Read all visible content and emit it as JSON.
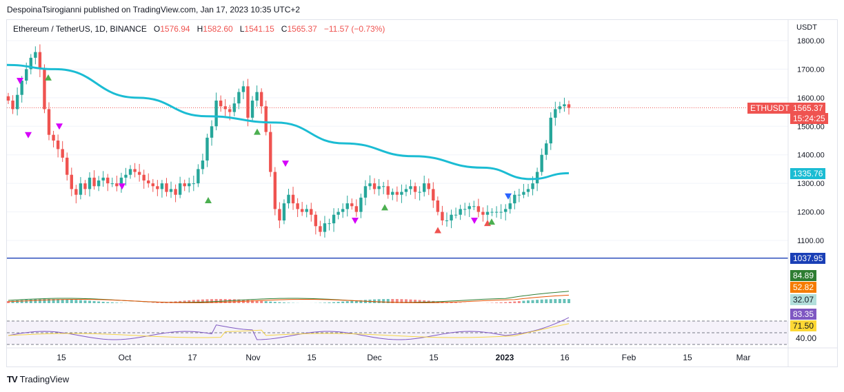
{
  "header": {
    "publisher": "DespoinaTsirogianni published on TradingView.com, Jan 17, 2023 10:35 UTC+2"
  },
  "legend": {
    "symbol": "Ethereum / TetherUS, 1D, BINANCE",
    "open_label": "O",
    "open": "1576.94",
    "high_label": "H",
    "high": "1582.60",
    "low_label": "L",
    "low": "1541.15",
    "close_label": "C",
    "close": "1565.37",
    "change": "−11.57 (−0.73%)"
  },
  "price_axis": {
    "unit": "USDT"
  },
  "tags": {
    "symbol": "ETHUSDT",
    "last_price": "1565.37",
    "countdown": "15:24:25",
    "ma_value": "1335.76",
    "hline_value": "1037.95",
    "macd_1": "84.89",
    "macd_2": "52.82",
    "macd_3": "32.07",
    "rsi": "83.35",
    "rsi_ma": "71.50",
    "rsi_level": "40.00"
  },
  "footer": {
    "brand": "TradingView",
    "logo": "TV"
  },
  "colors": {
    "up": "#26a69a",
    "down": "#ef5350",
    "ma": "#1bbcd3",
    "hline": "#1a3fb6",
    "rsi": "#7e57c2",
    "rsi_ma": "#f5d547",
    "macd": "#2e7d32",
    "signal": "#e65100",
    "marker_up": "#4caf50",
    "marker_pink": "#d500f9",
    "marker_blue": "#2962ff",
    "marker_red": "#ef5350"
  },
  "chart_data": [
    {
      "type": "candlestick",
      "title": "Ethereum / TetherUS, 1D, BINANCE",
      "x_ticks": [
        "15",
        "Oct",
        "17",
        "Nov",
        "15",
        "Dec",
        "15",
        "2023",
        "16",
        "Feb",
        "15",
        "Mar"
      ],
      "y_ticks": [
        1100,
        1200,
        1300,
        1400,
        1500,
        1600,
        1700,
        1800
      ],
      "ylim": [
        1020,
        1830
      ],
      "close_series": [
        1590,
        1560,
        1610,
        1660,
        1700,
        1740,
        1760,
        1700,
        1560,
        1470,
        1450,
        1420,
        1390,
        1330,
        1280,
        1260,
        1300,
        1280,
        1320,
        1290,
        1310,
        1320,
        1300,
        1300,
        1290,
        1320,
        1330,
        1350,
        1340,
        1330,
        1310,
        1300,
        1290,
        1280,
        1300,
        1270,
        1280,
        1260,
        1300,
        1290,
        1300,
        1300,
        1350,
        1380,
        1460,
        1500,
        1590,
        1570,
        1560,
        1550,
        1580,
        1620,
        1640,
        1530,
        1590,
        1620,
        1570,
        1480,
        1340,
        1210,
        1170,
        1230,
        1260,
        1230,
        1210,
        1200,
        1210,
        1190,
        1150,
        1130,
        1160,
        1160,
        1190,
        1200,
        1210,
        1230,
        1220,
        1200,
        1250,
        1290,
        1300,
        1280,
        1290,
        1290,
        1260,
        1270,
        1260,
        1270,
        1280,
        1290,
        1270,
        1270,
        1300,
        1280,
        1240,
        1200,
        1170,
        1170,
        1190,
        1190,
        1210,
        1210,
        1220,
        1220,
        1200,
        1190,
        1200,
        1200,
        1200,
        1200,
        1210,
        1230,
        1260,
        1260,
        1270,
        1280,
        1300,
        1340,
        1400,
        1440,
        1530,
        1560,
        1570,
        1577,
        1565
      ],
      "moving_average": {
        "start": 1715,
        "end": 1335.76
      },
      "horizontal_line": 1037.95
    },
    {
      "type": "bar",
      "title": "MACD",
      "values": [
        84.89,
        52.82,
        32.07
      ]
    },
    {
      "type": "line",
      "title": "RSI",
      "values": [
        83.35,
        71.5
      ],
      "levels": [
        40.0
      ]
    }
  ]
}
